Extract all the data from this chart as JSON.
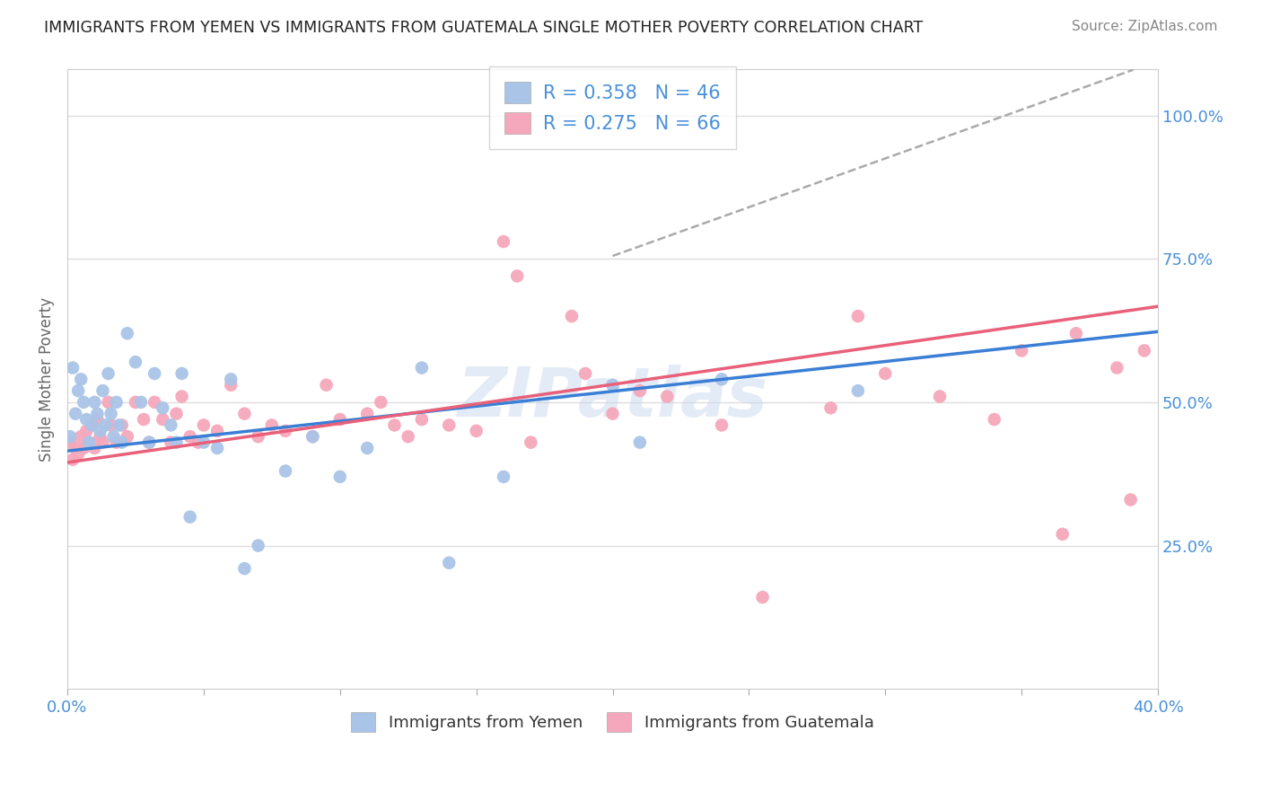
{
  "title": "IMMIGRANTS FROM YEMEN VS IMMIGRANTS FROM GUATEMALA SINGLE MOTHER POVERTY CORRELATION CHART",
  "source": "Source: ZipAtlas.com",
  "ylabel": "Single Mother Poverty",
  "xlim": [
    0.0,
    0.4
  ],
  "ylim": [
    0.0,
    1.08
  ],
  "ytick_values": [
    0.25,
    0.5,
    0.75,
    1.0
  ],
  "ytick_labels": [
    "25.0%",
    "50.0%",
    "75.0%",
    "100.0%"
  ],
  "xtick_values": [
    0.0,
    0.05,
    0.1,
    0.15,
    0.2,
    0.25,
    0.3,
    0.35,
    0.4
  ],
  "xtick_labels": [
    "0.0%",
    "",
    "",
    "",
    "",
    "",
    "",
    "",
    "40.0%"
  ],
  "legend_r_yemen": "0.358",
  "legend_n_yemen": "46",
  "legend_r_guatemala": "0.275",
  "legend_n_guatemala": "66",
  "yemen_color": "#aac4e8",
  "guatemala_color": "#f5a8bb",
  "yemen_line_color": "#3a7fd5",
  "guatemala_line_color": "#e8607a",
  "dashed_line_color": "#aaaaaa",
  "watermark": "ZIPatlas",
  "background_color": "#ffffff",
  "grid_color": "#dddddd",
  "title_color": "#222222",
  "axis_label_color": "#666666",
  "tick_color": "#4a90d9",
  "yemen_scatter_x": [
    0.001,
    0.002,
    0.003,
    0.004,
    0.005,
    0.006,
    0.007,
    0.008,
    0.009,
    0.01,
    0.011,
    0.012,
    0.013,
    0.014,
    0.015,
    0.016,
    0.017,
    0.018,
    0.019,
    0.02,
    0.022,
    0.025,
    0.027,
    0.03,
    0.032,
    0.035,
    0.038,
    0.04,
    0.042,
    0.045,
    0.05,
    0.055,
    0.06,
    0.065,
    0.07,
    0.08,
    0.09,
    0.1,
    0.11,
    0.13,
    0.14,
    0.16,
    0.2,
    0.21,
    0.24,
    0.29
  ],
  "yemen_scatter_y": [
    0.44,
    0.56,
    0.48,
    0.52,
    0.54,
    0.5,
    0.47,
    0.43,
    0.46,
    0.5,
    0.48,
    0.45,
    0.52,
    0.46,
    0.55,
    0.48,
    0.44,
    0.5,
    0.46,
    0.43,
    0.62,
    0.57,
    0.5,
    0.43,
    0.55,
    0.49,
    0.46,
    0.43,
    0.55,
    0.3,
    0.43,
    0.42,
    0.54,
    0.21,
    0.25,
    0.38,
    0.44,
    0.37,
    0.42,
    0.56,
    0.22,
    0.37,
    0.53,
    0.43,
    0.54,
    0.52
  ],
  "guatemala_scatter_x": [
    0.001,
    0.002,
    0.003,
    0.004,
    0.005,
    0.006,
    0.007,
    0.008,
    0.009,
    0.01,
    0.011,
    0.012,
    0.013,
    0.015,
    0.016,
    0.018,
    0.02,
    0.022,
    0.025,
    0.028,
    0.03,
    0.032,
    0.035,
    0.038,
    0.04,
    0.042,
    0.045,
    0.048,
    0.05,
    0.055,
    0.06,
    0.065,
    0.07,
    0.075,
    0.08,
    0.09,
    0.095,
    0.1,
    0.11,
    0.115,
    0.12,
    0.125,
    0.13,
    0.14,
    0.15,
    0.16,
    0.165,
    0.17,
    0.185,
    0.19,
    0.2,
    0.21,
    0.22,
    0.24,
    0.255,
    0.28,
    0.29,
    0.3,
    0.32,
    0.34,
    0.35,
    0.365,
    0.37,
    0.385,
    0.39,
    0.395
  ],
  "guatemala_scatter_y": [
    0.43,
    0.4,
    0.42,
    0.41,
    0.44,
    0.42,
    0.45,
    0.43,
    0.46,
    0.42,
    0.47,
    0.44,
    0.43,
    0.5,
    0.46,
    0.43,
    0.46,
    0.44,
    0.5,
    0.47,
    0.43,
    0.5,
    0.47,
    0.43,
    0.48,
    0.51,
    0.44,
    0.43,
    0.46,
    0.45,
    0.53,
    0.48,
    0.44,
    0.46,
    0.45,
    0.44,
    0.53,
    0.47,
    0.48,
    0.5,
    0.46,
    0.44,
    0.47,
    0.46,
    0.45,
    0.78,
    0.72,
    0.43,
    0.65,
    0.55,
    0.48,
    0.52,
    0.51,
    0.46,
    0.16,
    0.49,
    0.65,
    0.55,
    0.51,
    0.47,
    0.59,
    0.27,
    0.62,
    0.56,
    0.33,
    0.59
  ],
  "yemen_line_intercept": 0.415,
  "yemen_line_slope": 0.52,
  "guatemala_line_intercept": 0.395,
  "guatemala_line_slope": 0.68,
  "dashed_line_intercept": 0.415,
  "dashed_line_slope": 1.7
}
